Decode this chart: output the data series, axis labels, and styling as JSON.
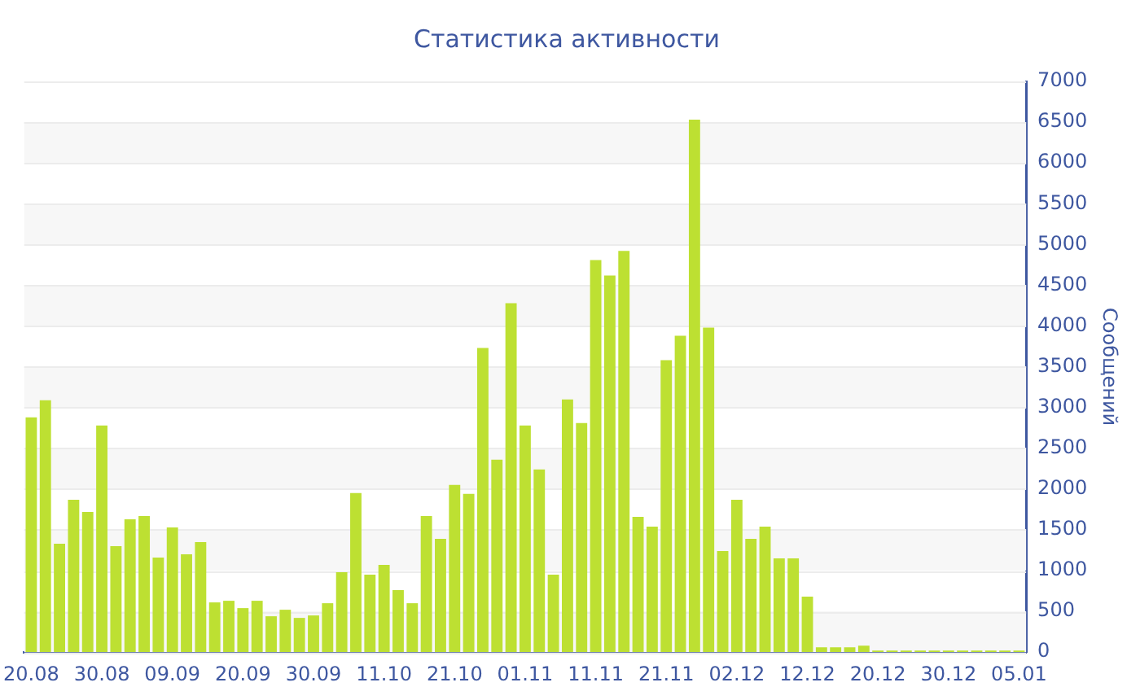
{
  "chart_data": {
    "type": "bar",
    "title": "Статистика активности",
    "ylabel": "Сообщений",
    "categories": [
      "20.08",
      null,
      null,
      null,
      null,
      "30.08",
      null,
      null,
      null,
      null,
      "09.09",
      null,
      null,
      null,
      null,
      "20.09",
      null,
      null,
      null,
      null,
      "30.09",
      null,
      null,
      null,
      null,
      "11.10",
      null,
      null,
      null,
      null,
      "21.10",
      null,
      null,
      null,
      null,
      "01.11",
      null,
      null,
      null,
      null,
      "11.11",
      null,
      null,
      null,
      null,
      "21.11",
      null,
      null,
      null,
      null,
      "02.12",
      null,
      null,
      null,
      null,
      "12.12",
      null,
      null,
      null,
      null,
      "20.12",
      null,
      null,
      null,
      null,
      "30.12",
      null,
      null,
      null,
      null,
      "05.01"
    ],
    "values": [
      2880,
      3090,
      1330,
      1870,
      1720,
      2780,
      1300,
      1630,
      1670,
      1160,
      1530,
      1200,
      1350,
      610,
      630,
      540,
      630,
      440,
      520,
      420,
      450,
      600,
      980,
      1950,
      950,
      1070,
      760,
      600,
      1670,
      1390,
      2050,
      1940,
      3730,
      2360,
      4280,
      2780,
      2240,
      950,
      3100,
      2810,
      4810,
      4620,
      4920,
      1660,
      1540,
      3580,
      3880,
      6530,
      3980,
      1240,
      1870,
      1390,
      1540,
      1150,
      1150,
      680,
      60,
      60,
      60,
      80,
      20,
      20,
      20,
      20,
      20,
      20,
      20,
      20,
      20,
      20,
      20
    ],
    "color": "#bde032",
    "ylim": [
      0,
      7000
    ],
    "yticks": [
      0,
      500,
      1000,
      1500,
      2000,
      2500,
      3000,
      3500,
      4000,
      4500,
      5000,
      5500,
      6000,
      6500,
      7000
    ],
    "grid": "y"
  }
}
